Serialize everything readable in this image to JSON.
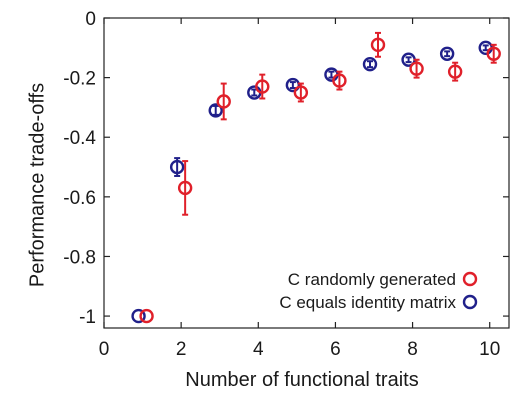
{
  "chart_data": {
    "type": "scatter",
    "title": "",
    "xlabel": "Number of functional traits",
    "ylabel": "Performance trade-offs",
    "xlim": [
      0,
      10.5
    ],
    "ylim": [
      -1.04,
      0
    ],
    "xticks": [
      0,
      2,
      4,
      6,
      8,
      10
    ],
    "yticks": [
      0,
      -0.2,
      -0.4,
      -0.6,
      -0.8,
      -1
    ],
    "xtick_labels": [
      "0",
      "2",
      "4",
      "6",
      "8",
      "10"
    ],
    "ytick_labels": [
      "0",
      "-0.2",
      "-0.4",
      "-0.6",
      "-0.8",
      "-1"
    ],
    "grid": false,
    "legend_position": "bottom-right",
    "series": [
      {
        "name": "C randomly generated",
        "color": "#e0202a",
        "marker": "open-circle",
        "x": [
          1,
          2,
          3,
          4,
          5,
          6,
          7,
          8,
          9,
          10
        ],
        "y": [
          -1.0,
          -0.57,
          -0.28,
          -0.23,
          -0.25,
          -0.21,
          -0.09,
          -0.17,
          -0.18,
          -0.12
        ],
        "err": [
          0.0,
          0.09,
          0.06,
          0.04,
          0.03,
          0.03,
          0.04,
          0.03,
          0.03,
          0.03
        ]
      },
      {
        "name": "C equals identity matrix",
        "color": "#20208a",
        "marker": "open-circle",
        "x": [
          1,
          2,
          3,
          4,
          5,
          6,
          7,
          8,
          9,
          10
        ],
        "y": [
          -1.0,
          -0.5,
          -0.31,
          -0.25,
          -0.225,
          -0.19,
          -0.155,
          -0.14,
          -0.12,
          -0.1
        ],
        "err": [
          0.0,
          0.03,
          0.015,
          0.01,
          0.01,
          0.01,
          0.01,
          0.008,
          0.008,
          0.008
        ]
      }
    ]
  }
}
